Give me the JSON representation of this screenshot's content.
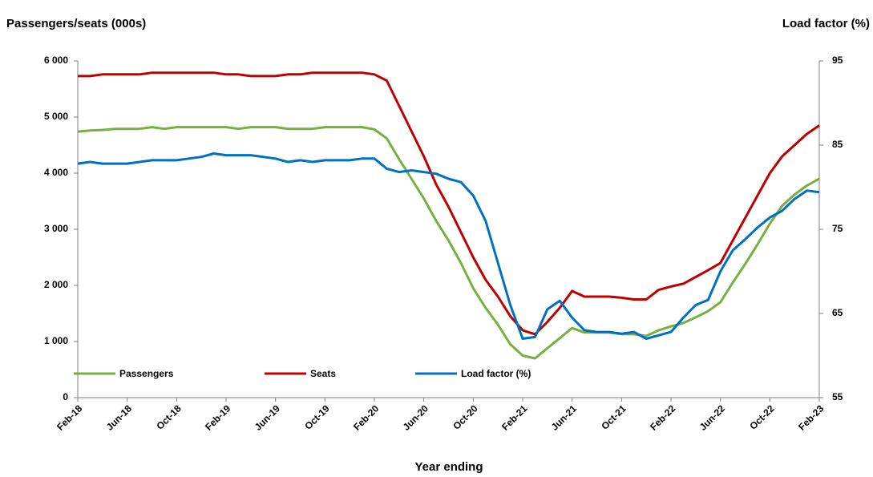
{
  "chart_data": {
    "type": "line",
    "y_label": "Passengers/seats (000s)",
    "y2_label": "Load factor (%)",
    "x_label": "Year ending",
    "categories": [
      "Feb-18",
      null,
      null,
      null,
      "Jun-18",
      null,
      null,
      null,
      "Oct-18",
      null,
      null,
      null,
      "Feb-19",
      null,
      null,
      null,
      "Jun-19",
      null,
      null,
      null,
      "Oct-19",
      null,
      null,
      null,
      "Feb-20",
      null,
      null,
      null,
      "Jun-20",
      null,
      null,
      null,
      "Oct-20",
      null,
      null,
      null,
      "Feb-21",
      null,
      null,
      null,
      "Jun-21",
      null,
      null,
      null,
      "Oct-21",
      null,
      null,
      null,
      "Feb-22",
      null,
      null,
      null,
      "Jun-22",
      null,
      null,
      null,
      "Oct-22",
      null,
      null,
      null,
      "Feb-23"
    ],
    "series": [
      {
        "name": "Passengers",
        "color": "#77b041",
        "values": [
          4740,
          4760,
          4770,
          4790,
          4790,
          4790,
          4820,
          4790,
          4820,
          4820,
          4820,
          4820,
          4820,
          4790,
          4820,
          4820,
          4820,
          4790,
          4790,
          4790,
          4820,
          4820,
          4820,
          4820,
          4780,
          4620,
          4250,
          3900,
          3550,
          3150,
          2800,
          2400,
          1950,
          1600,
          1300,
          950,
          750,
          700,
          880,
          1060,
          1240,
          1160,
          1160,
          1160,
          1130,
          1130,
          1100,
          1200,
          1270,
          1330,
          1430,
          1540,
          1700,
          2050,
          2380,
          2730,
          3100,
          3420,
          3620,
          3780,
          3900
        ]
      },
      {
        "name": "Seats",
        "color": "#c00000",
        "values": [
          5730,
          5730,
          5760,
          5760,
          5760,
          5760,
          5790,
          5790,
          5790,
          5790,
          5790,
          5790,
          5760,
          5760,
          5730,
          5730,
          5730,
          5760,
          5760,
          5790,
          5790,
          5790,
          5790,
          5790,
          5760,
          5650,
          5200,
          4750,
          4300,
          3800,
          3400,
          2950,
          2500,
          2100,
          1800,
          1450,
          1200,
          1130,
          1350,
          1600,
          1900,
          1800,
          1800,
          1800,
          1780,
          1750,
          1750,
          1920,
          1980,
          2030,
          2150,
          2270,
          2400,
          2800,
          3200,
          3600,
          4000,
          4300,
          4500,
          4700,
          4850
        ]
      },
      {
        "name": "Load factor (%)",
        "color": "#0070c0",
        "axis": "y2",
        "values": [
          82.8,
          83.0,
          82.8,
          82.8,
          82.8,
          83.0,
          83.2,
          83.2,
          83.2,
          83.4,
          83.6,
          84.0,
          83.8,
          83.8,
          83.8,
          83.6,
          83.4,
          83.0,
          83.2,
          83.0,
          83.2,
          83.2,
          83.2,
          83.4,
          83.4,
          82.2,
          81.8,
          82.0,
          81.8,
          81.6,
          81.0,
          80.6,
          79.0,
          76.0,
          71.0,
          66.0,
          62.0,
          62.2,
          65.5,
          66.5,
          64.5,
          63.0,
          62.8,
          62.8,
          62.6,
          62.8,
          62.0,
          62.4,
          62.8,
          64.5,
          66.0,
          66.6,
          70.0,
          72.5,
          73.8,
          75.2,
          76.4,
          77.2,
          78.6,
          79.6,
          79.4
        ]
      }
    ],
    "ylim": [
      0,
      6000
    ],
    "yticks": [
      0,
      {
        "value": 1000,
        "label": "1 000"
      },
      {
        "value": 2000,
        "label": "2 000"
      },
      {
        "value": 3000,
        "label": "3 000"
      },
      {
        "value": 4000,
        "label": "4 000"
      },
      {
        "value": 5000,
        "label": "5 000"
      },
      {
        "value": 6000,
        "label": "6 000"
      }
    ],
    "y2lim": [
      55,
      95
    ],
    "y2ticks": [
      55,
      65,
      75,
      85,
      95
    ],
    "grid": false,
    "legend": "bottom"
  }
}
